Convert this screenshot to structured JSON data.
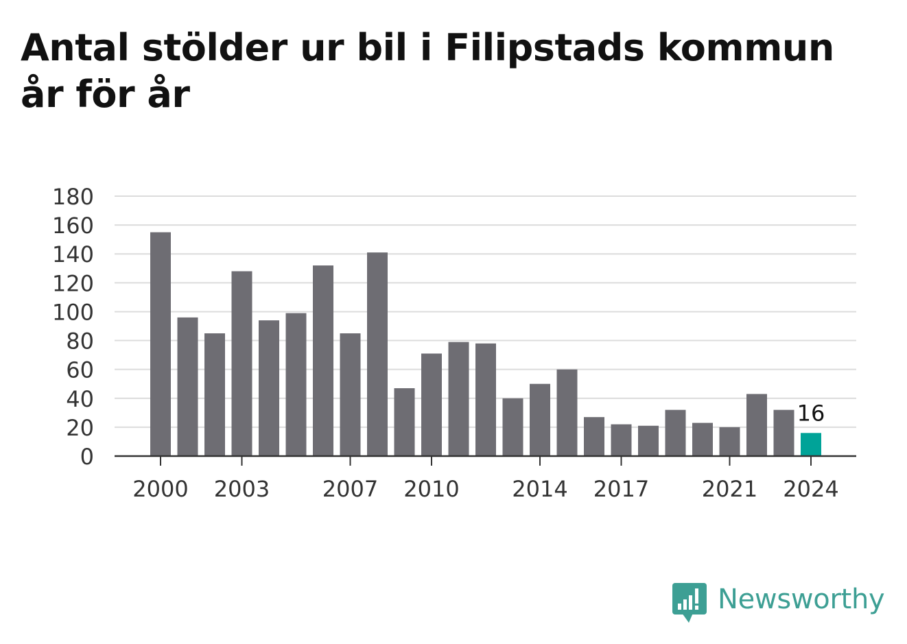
{
  "title": "Antal stölder ur bil i Filipstads kommun år för år",
  "brand": {
    "name": "Newsworthy",
    "icon": "newsworthy-logo-icon",
    "color": "#3d9f94"
  },
  "chart_data": {
    "type": "bar",
    "title": "Antal stölder ur bil i Filipstads kommun år för år",
    "xlabel": "",
    "ylabel": "",
    "ylim": [
      0,
      180
    ],
    "yticks": [
      0,
      20,
      40,
      60,
      80,
      100,
      120,
      140,
      160,
      180
    ],
    "xtick_labels": [
      "2000",
      "2003",
      "2007",
      "2010",
      "2014",
      "2017",
      "2021",
      "2024"
    ],
    "grid": true,
    "legend": "none",
    "categories": [
      "2000",
      "2001",
      "2002",
      "2003",
      "2004",
      "2005",
      "2006",
      "2007",
      "2008",
      "2009",
      "2010",
      "2011",
      "2012",
      "2013",
      "2014",
      "2015",
      "2016",
      "2017",
      "2018",
      "2019",
      "2020",
      "2021",
      "2022",
      "2023",
      "2024"
    ],
    "values": [
      155,
      96,
      85,
      128,
      94,
      99,
      132,
      85,
      141,
      47,
      71,
      79,
      78,
      40,
      50,
      60,
      27,
      22,
      21,
      32,
      23,
      20,
      43,
      32,
      16
    ],
    "bar_color": "#6e6d73",
    "highlight_color": "#00a398",
    "highlight_index": 24,
    "annotations": [
      {
        "category": "2024",
        "text": "16"
      }
    ]
  }
}
